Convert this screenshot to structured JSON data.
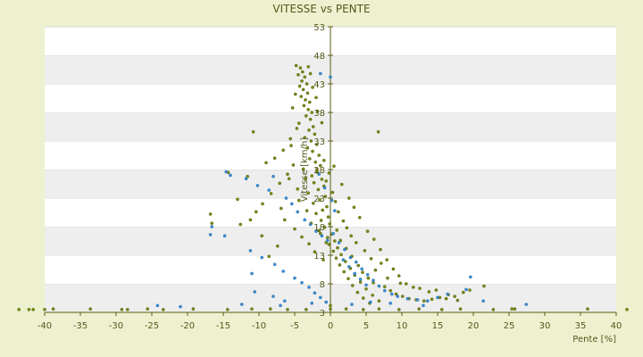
{
  "chart_data": {
    "type": "scatter",
    "title": "VITESSE vs PENTE",
    "xlabel": "Pente [%]",
    "ylabel": "Vitesse [km/h]",
    "xlim": [
      -40,
      40
    ],
    "ylim": [
      3,
      53
    ],
    "xticks": [
      -40,
      -35,
      -30,
      -25,
      -20,
      -15,
      -10,
      -5,
      0,
      5,
      10,
      15,
      20,
      25,
      30,
      35,
      40
    ],
    "yticks": [
      3,
      8,
      13,
      18,
      23,
      28,
      33,
      38,
      43,
      48,
      53
    ],
    "xtick_labels": [
      "-40",
      "-35",
      "-30",
      "-25",
      "-20",
      "-15",
      "-10",
      "-5",
      "0",
      "5",
      "10",
      "15",
      "20",
      "25",
      "30",
      "35",
      "40"
    ],
    "ytick_labels": [
      "3",
      "8",
      "13",
      "18",
      "23",
      "28",
      "33",
      "38",
      "43",
      "48",
      "53"
    ],
    "grid": true,
    "alternating_bands": true,
    "colors": {
      "background": "#eef1cf",
      "band_light": "#ffffff",
      "band_dark": "#eeeeee",
      "axis": "#5a5a12",
      "text": "#55581a",
      "series_1": "#7a8f12",
      "series_2": "#3a8fd8"
    },
    "series": [
      {
        "color": "#7a8f12",
        "points": [
          [
            -4.8,
            46.2
          ],
          [
            -4.2,
            45.8
          ],
          [
            -3.9,
            45.1
          ],
          [
            -4.5,
            44.6
          ],
          [
            -3.6,
            44.2
          ],
          [
            -4.0,
            43.5
          ],
          [
            -3.3,
            43.0
          ],
          [
            -4.3,
            42.6
          ],
          [
            -3.8,
            42.0
          ],
          [
            -3.2,
            41.4
          ],
          [
            -4.1,
            40.8
          ],
          [
            -3.5,
            40.2
          ],
          [
            -2.9,
            39.8
          ],
          [
            -3.7,
            39.2
          ],
          [
            -3.1,
            38.5
          ],
          [
            -2.6,
            38.0
          ],
          [
            -3.4,
            37.4
          ],
          [
            -2.8,
            36.8
          ],
          [
            -4.4,
            36.1
          ],
          [
            -2.4,
            35.5
          ],
          [
            -3.0,
            34.9
          ],
          [
            -2.2,
            34.2
          ],
          [
            -3.6,
            33.6
          ],
          [
            -2.7,
            33.0
          ],
          [
            -1.9,
            32.4
          ],
          [
            -3.2,
            31.8
          ],
          [
            -2.5,
            31.2
          ],
          [
            -1.6,
            30.5
          ],
          [
            -2.9,
            29.9
          ],
          [
            -2.1,
            29.3
          ],
          [
            -1.4,
            28.7
          ],
          [
            -3.8,
            28.1
          ],
          [
            -1.8,
            27.5
          ],
          [
            -2.6,
            26.9
          ],
          [
            -1.2,
            26.3
          ],
          [
            -2.3,
            25.7
          ],
          [
            -0.9,
            25.1
          ],
          [
            -1.7,
            24.5
          ],
          [
            -3.1,
            23.9
          ],
          [
            -0.7,
            23.3
          ],
          [
            -1.5,
            22.7
          ],
          [
            -2.4,
            22.1
          ],
          [
            -0.5,
            21.5
          ],
          [
            -1.1,
            20.9
          ],
          [
            -2.0,
            20.3
          ],
          [
            -0.3,
            19.7
          ],
          [
            -1.3,
            19.1
          ],
          [
            -0.1,
            18.5
          ],
          [
            -0.8,
            17.9
          ],
          [
            -1.6,
            17.3
          ],
          [
            0.2,
            16.7
          ],
          [
            -0.4,
            16.1
          ],
          [
            0.6,
            15.5
          ],
          [
            -0.2,
            14.9
          ],
          [
            1.0,
            14.3
          ],
          [
            0.4,
            13.7
          ],
          [
            1.5,
            13.1
          ],
          [
            0.8,
            12.5
          ],
          [
            2.1,
            11.9
          ],
          [
            1.3,
            11.3
          ],
          [
            2.8,
            10.7
          ],
          [
            1.9,
            10.1
          ],
          [
            3.4,
            9.5
          ],
          [
            2.5,
            8.9
          ],
          [
            4.2,
            8.3
          ],
          [
            3.1,
            7.7
          ],
          [
            5.0,
            7.1
          ],
          [
            3.8,
            6.5
          ],
          [
            5.9,
            6.0
          ],
          [
            4.6,
            5.5
          ],
          [
            6.8,
            5.0
          ],
          [
            5.5,
            4.6
          ],
          [
            7.6,
            7.5
          ],
          [
            8.4,
            6.8
          ],
          [
            9.2,
            6.2
          ],
          [
            10.1,
            5.8
          ],
          [
            11.0,
            5.4
          ],
          [
            12.0,
            5.2
          ],
          [
            13.1,
            5.0
          ],
          [
            14.2,
            5.3
          ],
          [
            15.3,
            5.6
          ],
          [
            16.5,
            6.1
          ],
          [
            17.4,
            5.8
          ],
          [
            18.6,
            6.5
          ],
          [
            19.5,
            6.9
          ],
          [
            21.5,
            7.6
          ],
          [
            9.8,
            8.1
          ],
          [
            11.6,
            7.4
          ],
          [
            13.8,
            6.6
          ],
          [
            8.0,
            9.0
          ],
          [
            6.3,
            10.4
          ],
          [
            7.1,
            11.6
          ],
          [
            5.7,
            12.4
          ],
          [
            4.8,
            13.8
          ],
          [
            3.6,
            15.2
          ],
          [
            2.9,
            16.4
          ],
          [
            2.3,
            17.8
          ],
          [
            1.8,
            19.0
          ],
          [
            1.1,
            20.6
          ],
          [
            0.7,
            22.4
          ],
          [
            0.3,
            24.0
          ],
          [
            -0.6,
            26.0
          ],
          [
            -5.2,
            28.8
          ],
          [
            -6.0,
            27.2
          ],
          [
            -7.1,
            25.6
          ],
          [
            -8.3,
            23.8
          ],
          [
            -9.5,
            22.0
          ],
          [
            -10.4,
            20.6
          ],
          [
            -11.2,
            19.2
          ],
          [
            -12.6,
            18.4
          ],
          [
            -6.6,
            31.4
          ],
          [
            -5.6,
            33.4
          ],
          [
            -7.8,
            30.0
          ],
          [
            -9.0,
            29.2
          ],
          [
            -10.8,
            34.6
          ],
          [
            -11.6,
            26.8
          ],
          [
            -13.0,
            22.8
          ],
          [
            -14.3,
            27.5
          ],
          [
            -16.6,
            18.6
          ],
          [
            -16.8,
            20.2
          ],
          [
            -6.4,
            19.2
          ],
          [
            -5.0,
            17.6
          ],
          [
            -4.0,
            16.2
          ],
          [
            -3.0,
            15.0
          ],
          [
            -2.2,
            13.6
          ],
          [
            -1.0,
            12.2
          ],
          [
            -7.4,
            14.6
          ],
          [
            -8.6,
            12.8
          ],
          [
            -9.6,
            16.4
          ],
          [
            -6.9,
            21.2
          ],
          [
            -4.6,
            24.6
          ],
          [
            -3.5,
            26.4
          ],
          [
            -1.9,
            28.0
          ],
          [
            -0.9,
            29.6
          ],
          [
            1.6,
            25.4
          ],
          [
            2.6,
            23.0
          ],
          [
            3.3,
            21.4
          ],
          [
            4.1,
            19.6
          ],
          [
            5.2,
            17.2
          ],
          [
            6.1,
            15.8
          ],
          [
            7.0,
            14.0
          ],
          [
            7.9,
            12.2
          ],
          [
            8.8,
            10.6
          ],
          [
            9.6,
            9.4
          ],
          [
            10.6,
            8.0
          ],
          [
            12.5,
            7.2
          ],
          [
            14.8,
            6.9
          ],
          [
            16.2,
            5.4
          ],
          [
            17.8,
            5.1
          ],
          [
            6.7,
            34.6
          ],
          [
            -0.2,
            27.4
          ],
          [
            0.5,
            28.6
          ],
          [
            -1.2,
            36.2
          ],
          [
            -1.8,
            38.2
          ],
          [
            -2.0,
            40.6
          ],
          [
            -2.5,
            42.4
          ],
          [
            -2.8,
            44.8
          ],
          [
            -3.1,
            46.0
          ],
          [
            -4.9,
            41.2
          ],
          [
            -5.3,
            38.8
          ],
          [
            -4.7,
            35.2
          ],
          [
            -5.5,
            32.2
          ],
          [
            -5.8,
            26.4
          ],
          [
            -4.4,
            22.6
          ],
          [
            -3.3,
            20.8
          ],
          [
            -2.7,
            18.6
          ],
          [
            -1.4,
            16.8
          ],
          [
            -0.6,
            15.2
          ],
          [
            0.9,
            17.4
          ],
          [
            1.4,
            15.6
          ],
          [
            2.2,
            14.2
          ],
          [
            3.0,
            12.8
          ],
          [
            3.9,
            11.2
          ],
          [
            4.5,
            10.0
          ],
          [
            5.3,
            9.0
          ],
          [
            6.0,
            8.2
          ],
          [
            -40.0,
            3.5
          ],
          [
            -38.8,
            3.6
          ],
          [
            -33.6,
            3.6
          ],
          [
            -29.2,
            3.5
          ],
          [
            -25.6,
            3.6
          ],
          [
            -23.4,
            3.5
          ],
          [
            -19.2,
            3.6
          ],
          [
            -14.4,
            3.5
          ],
          [
            -11.0,
            3.6
          ],
          [
            -8.4,
            3.6
          ],
          [
            -6.0,
            3.5
          ],
          [
            -3.4,
            3.5
          ],
          [
            0.0,
            3.6
          ],
          [
            0.0,
            4.2
          ],
          [
            2.2,
            3.6
          ],
          [
            4.6,
            3.5
          ],
          [
            6.8,
            3.6
          ],
          [
            9.6,
            3.5
          ],
          [
            12.4,
            3.6
          ],
          [
            15.6,
            3.5
          ],
          [
            18.2,
            3.6
          ],
          [
            22.8,
            3.5
          ],
          [
            25.4,
            3.6
          ],
          [
            25.8,
            3.6
          ],
          [
            36.0,
            3.6
          ],
          [
            41.5,
            3.5
          ],
          [
            -41.6,
            3.5
          ],
          [
            -43.6,
            3.5
          ],
          [
            -42.2,
            3.5
          ],
          [
            -28.4,
            3.5
          ]
        ]
      },
      {
        "color": "#3a8fd8",
        "points": [
          [
            -14.6,
            27.6
          ],
          [
            -14.0,
            27.0
          ],
          [
            -11.8,
            26.4
          ],
          [
            -10.2,
            25.2
          ],
          [
            -8.6,
            24.4
          ],
          [
            -8.0,
            26.8
          ],
          [
            -6.2,
            23.0
          ],
          [
            -5.4,
            22.0
          ],
          [
            -4.6,
            20.6
          ],
          [
            -3.6,
            19.2
          ],
          [
            -2.8,
            18.4
          ],
          [
            -2.0,
            17.2
          ],
          [
            -1.2,
            16.4
          ],
          [
            -0.4,
            15.6
          ],
          [
            0.4,
            16.8
          ],
          [
            1.2,
            15.2
          ],
          [
            2.0,
            14.0
          ],
          [
            2.8,
            12.6
          ],
          [
            3.6,
            11.8
          ],
          [
            4.4,
            10.6
          ],
          [
            5.2,
            9.6
          ],
          [
            6.0,
            8.6
          ],
          [
            6.8,
            7.6
          ],
          [
            7.6,
            6.8
          ],
          [
            8.6,
            6.2
          ],
          [
            9.4,
            5.8
          ],
          [
            10.8,
            5.4
          ],
          [
            12.2,
            5.2
          ],
          [
            13.6,
            5.0
          ],
          [
            15.0,
            5.6
          ],
          [
            16.4,
            6.2
          ],
          [
            19.0,
            7.0
          ],
          [
            -16.8,
            16.6
          ],
          [
            -14.8,
            16.4
          ],
          [
            -11.2,
            13.8
          ],
          [
            -9.6,
            12.6
          ],
          [
            -7.8,
            11.4
          ],
          [
            -6.6,
            10.2
          ],
          [
            -5.0,
            9.0
          ],
          [
            -4.0,
            8.2
          ],
          [
            -3.0,
            7.4
          ],
          [
            -2.2,
            6.4
          ],
          [
            -1.4,
            5.6
          ],
          [
            -0.6,
            4.8
          ],
          [
            0.6,
            20.8
          ],
          [
            0.2,
            22.6
          ],
          [
            -0.8,
            24.8
          ],
          [
            -1.6,
            27.2
          ],
          [
            1.8,
            12.2
          ],
          [
            2.6,
            11.0
          ],
          [
            3.4,
            9.8
          ],
          [
            4.2,
            8.8
          ],
          [
            5.0,
            7.8
          ],
          [
            0.0,
            44.2
          ],
          [
            -1.4,
            44.8
          ],
          [
            -11.0,
            9.8
          ],
          [
            -10.6,
            6.6
          ],
          [
            -8.0,
            5.8
          ],
          [
            -6.4,
            5.0
          ],
          [
            -24.2,
            4.2
          ],
          [
            -21.0,
            4.0
          ],
          [
            -12.4,
            4.4
          ],
          [
            -7.0,
            4.2
          ],
          [
            -2.6,
            4.6
          ],
          [
            3.0,
            4.4
          ],
          [
            5.6,
            4.8
          ],
          [
            8.4,
            4.6
          ],
          [
            13.0,
            4.2
          ],
          [
            19.6,
            9.2
          ],
          [
            21.4,
            5.0
          ],
          [
            27.4,
            4.4
          ],
          [
            -16.6,
            18.0
          ]
        ]
      }
    ]
  }
}
